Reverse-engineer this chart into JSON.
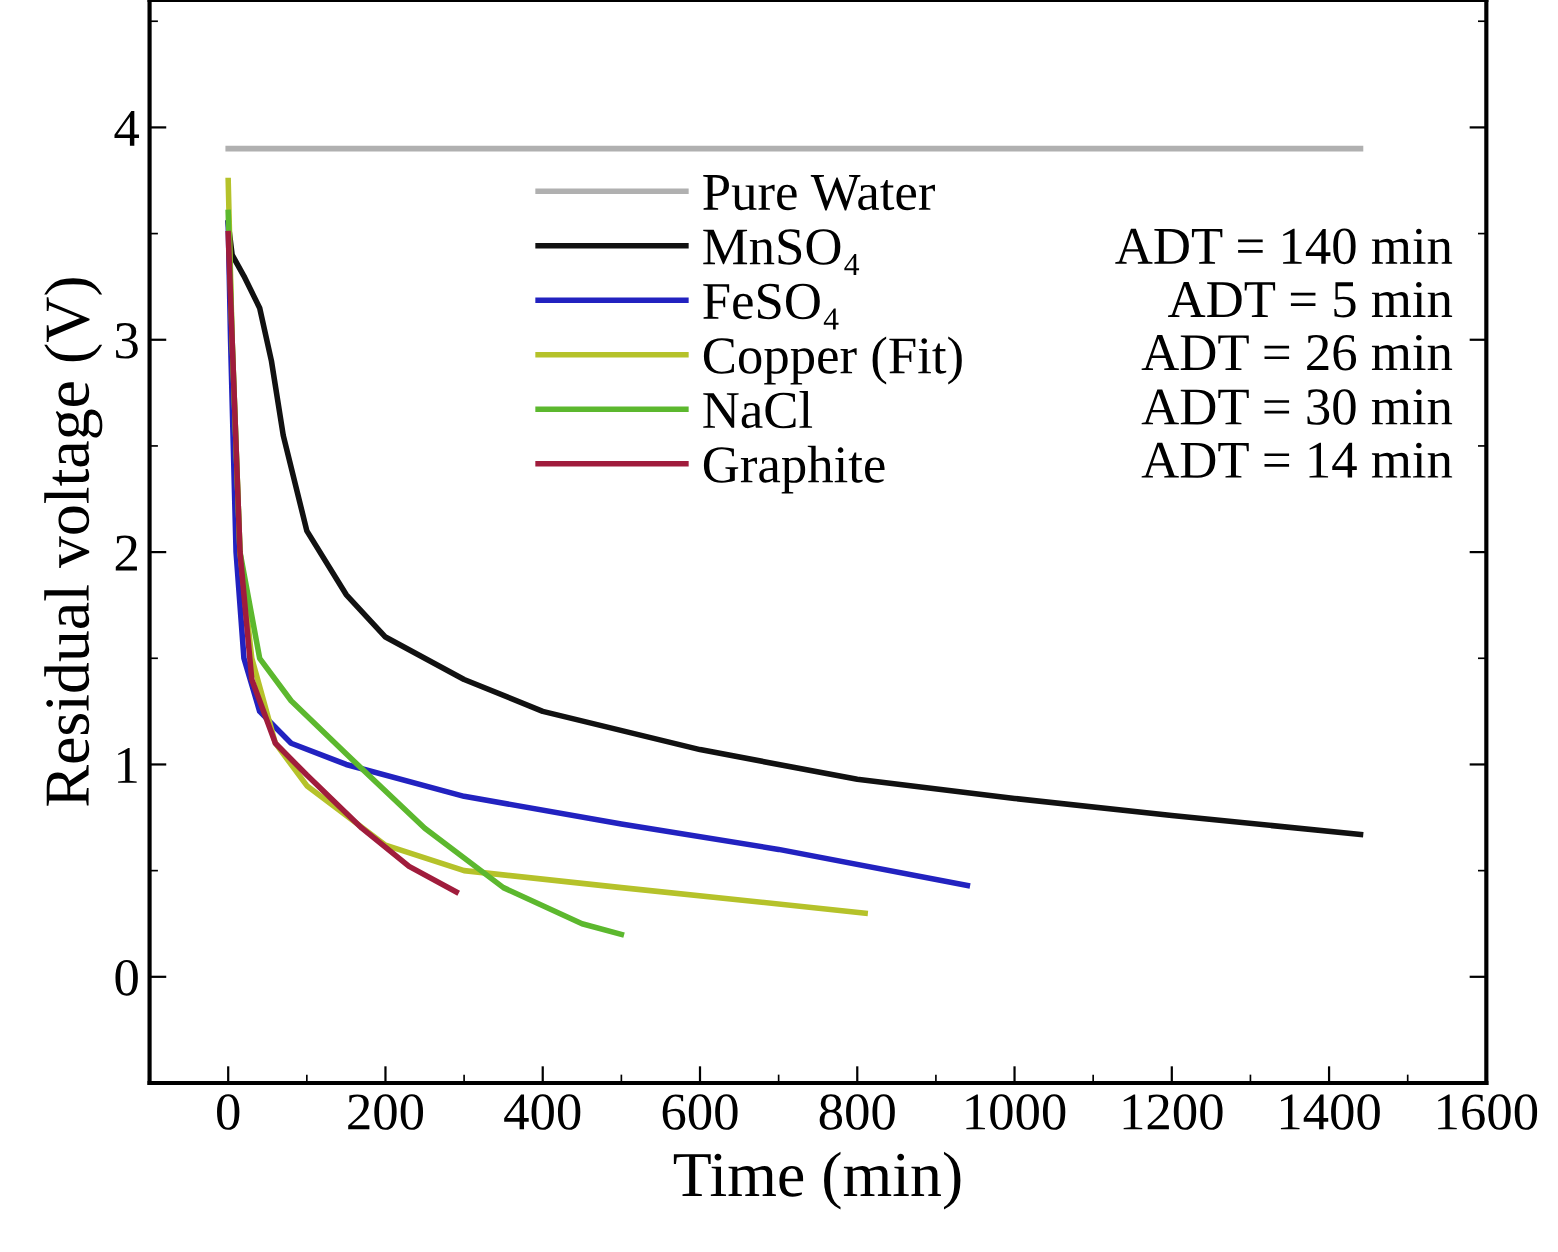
{
  "chart_data": {
    "type": "line",
    "xlabel": "Time (min)",
    "ylabel": "Residual voltage (V)",
    "xlim": [
      -100,
      1600
    ],
    "ylim": [
      -0.5,
      4.6
    ],
    "xticks": [
      0,
      200,
      400,
      600,
      800,
      1000,
      1200,
      1400,
      1600
    ],
    "yticks": [
      0,
      1,
      2,
      3,
      4
    ],
    "grid": false,
    "legend": "top",
    "marker": "none",
    "line_style": "solid",
    "series": [
      {
        "name": "Pure Water",
        "color": "#b0b0b0",
        "x": [
          0,
          1440
        ],
        "values": [
          3.9,
          3.9
        ]
      },
      {
        "name": "MnSO₄",
        "color": "#111111",
        "x": [
          0,
          5,
          20,
          40,
          55,
          70,
          100,
          150,
          200,
          300,
          400,
          600,
          800,
          1000,
          1200,
          1440
        ],
        "values": [
          3.55,
          3.4,
          3.3,
          3.15,
          2.9,
          2.55,
          2.1,
          1.8,
          1.6,
          1.4,
          1.25,
          1.07,
          0.93,
          0.84,
          0.76,
          0.67
        ]
      },
      {
        "name": "FeSO₄",
        "color": "#2222c0",
        "x": [
          0,
          3,
          10,
          20,
          40,
          80,
          150,
          300,
          500,
          700,
          940
        ],
        "values": [
          3.55,
          3.0,
          2.0,
          1.5,
          1.25,
          1.1,
          1.0,
          0.85,
          0.72,
          0.6,
          0.43
        ]
      },
      {
        "name": "Copper (Fit)",
        "color": "#b5c22a",
        "x": [
          0,
          5,
          15,
          30,
          60,
          100,
          200,
          300,
          500,
          810
        ],
        "values": [
          3.75,
          3.0,
          2.0,
          1.5,
          1.1,
          0.9,
          0.62,
          0.5,
          0.42,
          0.3
        ]
      },
      {
        "name": "NaCl",
        "color": "#5cb82e",
        "x": [
          0,
          5,
          15,
          40,
          80,
          150,
          250,
          350,
          450,
          500
        ],
        "values": [
          3.6,
          3.0,
          2.0,
          1.5,
          1.3,
          1.05,
          0.7,
          0.42,
          0.25,
          0.2
        ]
      },
      {
        "name": "Graphite",
        "color": "#a01c3c",
        "x": [
          0,
          5,
          15,
          30,
          60,
          100,
          170,
          230,
          290
        ],
        "values": [
          3.5,
          3.0,
          2.0,
          1.4,
          1.1,
          0.95,
          0.7,
          0.52,
          0.4
        ]
      }
    ],
    "annotations": [
      "ADT = 140 min",
      "ADT = 5 min",
      "ADT = 26 min",
      "ADT = 30 min",
      "ADT = 14 min"
    ]
  }
}
